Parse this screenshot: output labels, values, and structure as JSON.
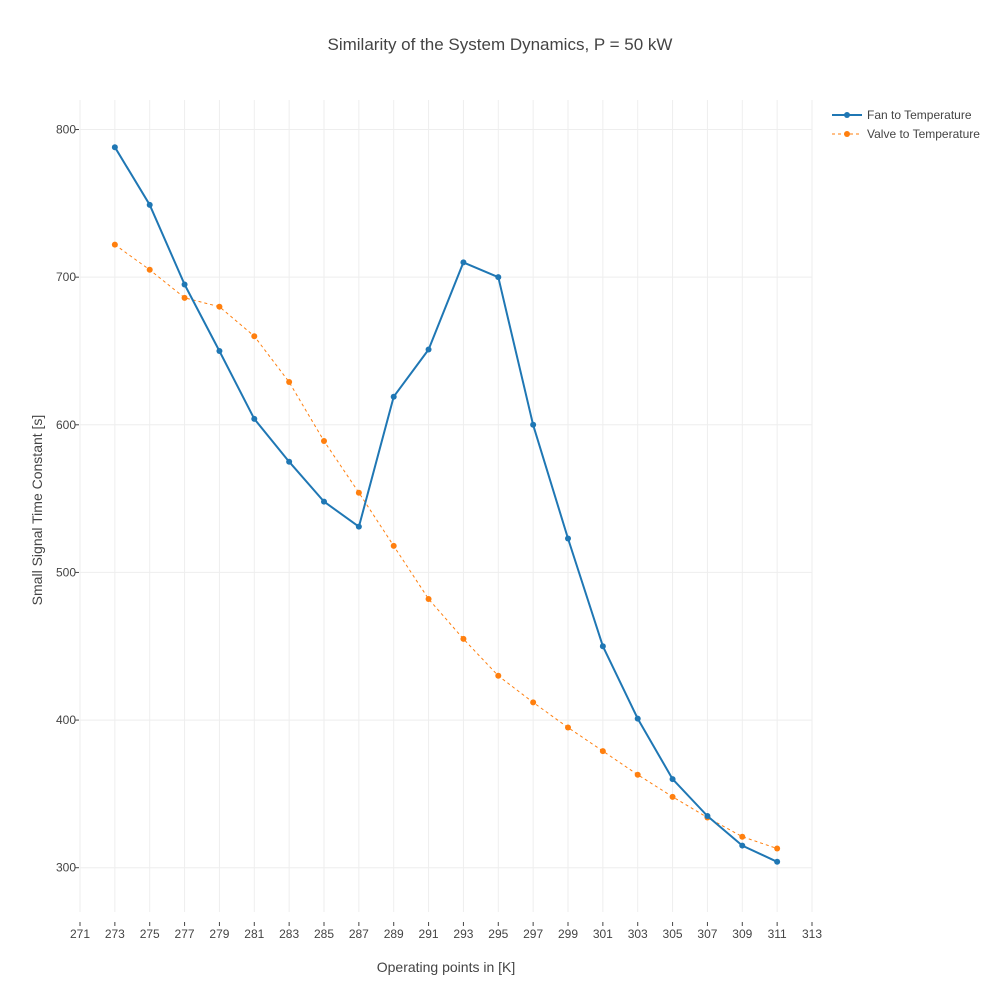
{
  "chart_data": {
    "type": "line",
    "title": "Similarity of the System Dynamics, P = 50 kW",
    "xlabel": "Operating points in [K]",
    "ylabel": "Small Signal Time Constant [s]",
    "xlim": [
      271,
      313
    ],
    "ylim": [
      270,
      820
    ],
    "x_ticks": [
      271,
      273,
      275,
      277,
      279,
      281,
      283,
      285,
      287,
      289,
      291,
      293,
      295,
      297,
      299,
      301,
      303,
      305,
      307,
      309,
      311,
      313
    ],
    "y_ticks": [
      300,
      400,
      500,
      600,
      700,
      800
    ],
    "grid": true,
    "legend_position": "top-right",
    "x": [
      273,
      275,
      277,
      279,
      281,
      283,
      285,
      287,
      289,
      291,
      293,
      295,
      297,
      299,
      301,
      303,
      305,
      307,
      309,
      311
    ],
    "series": [
      {
        "name": "Fan to Temperature",
        "color": "#1f77b4",
        "line_style": "solid",
        "values": [
          788,
          749,
          695,
          650,
          604,
          575,
          548,
          531,
          619,
          651,
          710,
          700,
          600,
          523,
          450,
          401,
          360,
          335,
          315,
          304
        ]
      },
      {
        "name": "Valve to Temperature",
        "color": "#ff7f0e",
        "line_style": "dash",
        "values": [
          722,
          705,
          686,
          680,
          660,
          629,
          589,
          554,
          518,
          482,
          455,
          430,
          412,
          395,
          379,
          363,
          348,
          334,
          321,
          313
        ]
      }
    ]
  }
}
